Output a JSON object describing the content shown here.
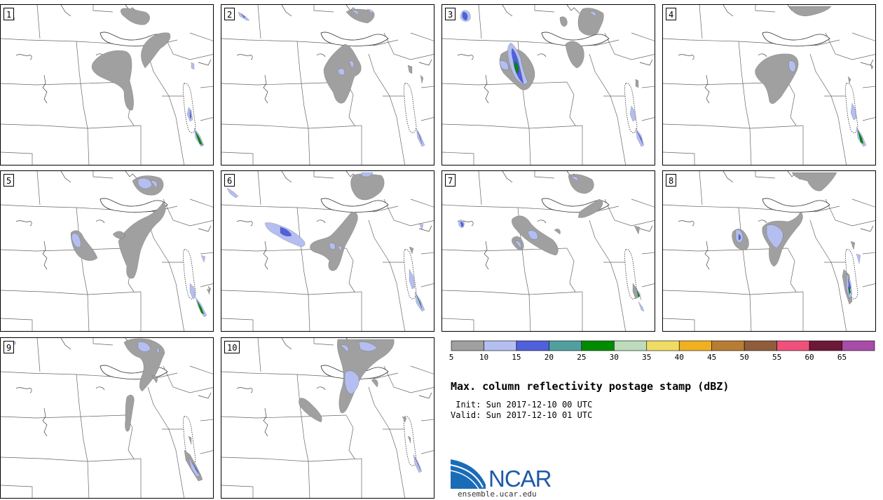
{
  "figure": {
    "title": "Max. column reflectivity postage stamp (dBZ)",
    "init_label": " Init: Sun 2017-12-10 00 UTC",
    "valid_label": "Valid: Sun 2017-12-10 01 UTC",
    "logo_text": "NCAR",
    "logo_url": "ensemble.ucar.edu"
  },
  "members": [
    "1",
    "2",
    "3",
    "4",
    "5",
    "6",
    "7",
    "8",
    "9",
    "10"
  ],
  "colorbar": {
    "units": "dBZ",
    "colors": [
      "#a0a0a0",
      "#b4bef0",
      "#5060dc",
      "#50a0a0",
      "#008c00",
      "#bcdcbc",
      "#f0dc64",
      "#f0b020",
      "#b87c34",
      "#905c3c",
      "#f0507c",
      "#6e1838",
      "#a84ca8"
    ],
    "tick_labels": [
      "5",
      "10",
      "15",
      "20",
      "25",
      "30",
      "35",
      "40",
      "45",
      "50",
      "55",
      "60",
      "65"
    ]
  }
}
